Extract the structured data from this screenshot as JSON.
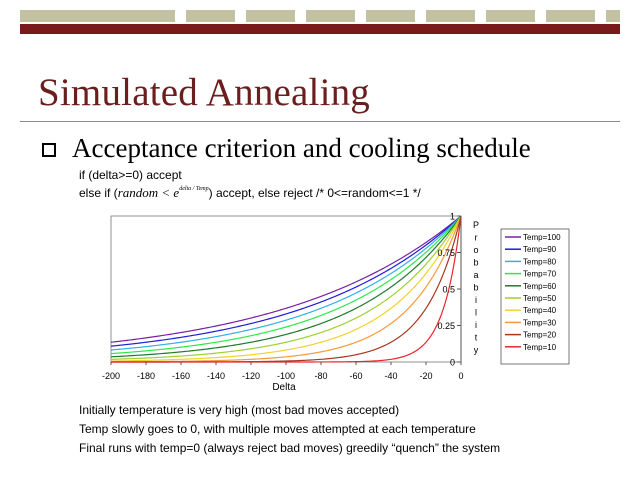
{
  "slide": {
    "title": "Simulated Annealing",
    "bullet": "Acceptance criterion and cooling schedule",
    "code_line1": "if (delta>=0) accept",
    "code_line2_prefix": "else if (",
    "code_line2_math_base": "random < e",
    "code_line2_math_exp": "delta / Temp",
    "code_line2_suffix": ") accept, else reject /* 0<=random<=1 */",
    "bottom_lines": [
      "Initially temperature is very high (most bad moves accepted)",
      "Temp slowly goes to 0, with multiple moves attempted at each temperature",
      "Final runs with temp=0 (always reject bad moves) greedily “quench” the system"
    ]
  },
  "chart_data": {
    "type": "line",
    "title": "",
    "xlabel": "Delta",
    "ylabel": "Probability",
    "ylabel_letters": [
      "P",
      "r",
      "o",
      "b",
      "a",
      "b",
      "i",
      "l",
      "i",
      "t",
      "y"
    ],
    "xlim": [
      -200,
      0
    ],
    "ylim": [
      0,
      1
    ],
    "x_ticks": [
      -200,
      -180,
      -160,
      -140,
      -120,
      -100,
      -80,
      -60,
      -40,
      -20,
      0
    ],
    "y_ticks": [
      0,
      0.25,
      0.5,
      0.75,
      1
    ],
    "y_tick_labels": [
      "0",
      "0.25",
      "0.5",
      "0.75",
      "1"
    ],
    "function": "exp(delta/Temp)",
    "grid": false,
    "legend": "right",
    "series": [
      {
        "name": "Temp=100",
        "temp": 100,
        "color": "#7b1fa2"
      },
      {
        "name": "Temp=90",
        "temp": 90,
        "color": "#1e1ed6"
      },
      {
        "name": "Temp=80",
        "temp": 80,
        "color": "#33b0e8"
      },
      {
        "name": "Temp=70",
        "temp": 70,
        "color": "#2ee84a"
      },
      {
        "name": "Temp=60",
        "temp": 60,
        "color": "#1f7a2e"
      },
      {
        "name": "Temp=50",
        "temp": 50,
        "color": "#9fd130"
      },
      {
        "name": "Temp=40",
        "temp": 40,
        "color": "#f2d22e"
      },
      {
        "name": "Temp=30",
        "temp": 30,
        "color": "#f59a3a"
      },
      {
        "name": "Temp=20",
        "temp": 20,
        "color": "#a8361f"
      },
      {
        "name": "Temp=10",
        "temp": 10,
        "color": "#e8262b"
      }
    ]
  }
}
